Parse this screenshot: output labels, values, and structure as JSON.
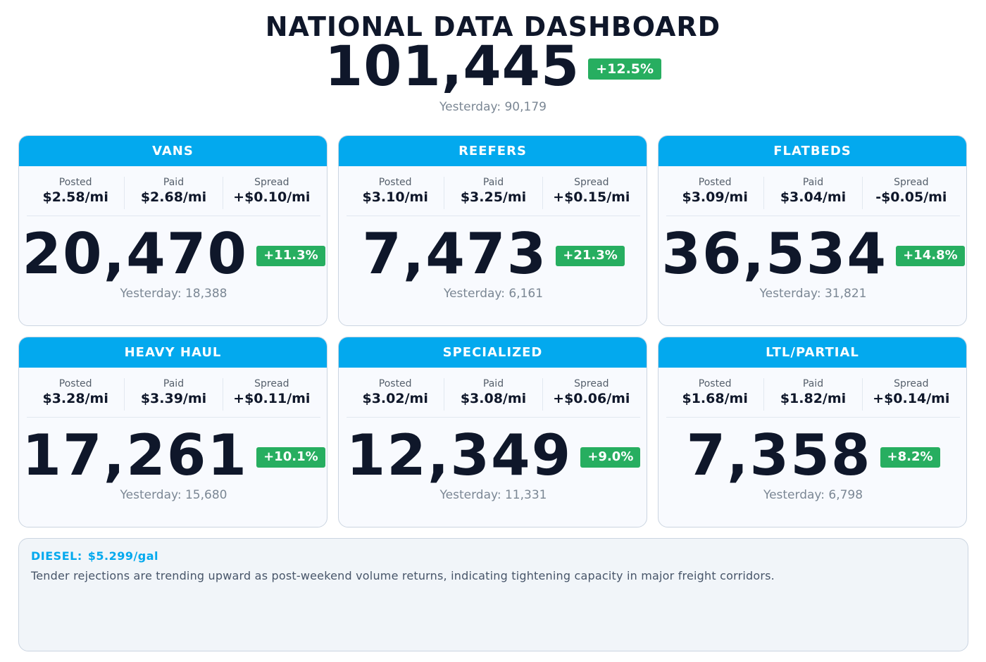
{
  "header": {
    "title": "NATIONAL DATA DASHBOARD",
    "total": "101,445",
    "change": "+12.5%",
    "yesterday": "Yesterday: 90,179"
  },
  "labels": {
    "posted": "Posted",
    "paid": "Paid",
    "spread": "Spread"
  },
  "cards": [
    {
      "title": "VANS",
      "posted": "$2.58/mi",
      "paid": "$2.68/mi",
      "spread": "+$0.10/mi",
      "count": "20,470",
      "change": "+11.3%",
      "yesterday": "Yesterday: 18,388"
    },
    {
      "title": "REEFERS",
      "posted": "$3.10/mi",
      "paid": "$3.25/mi",
      "spread": "+$0.15/mi",
      "count": "7,473",
      "change": "+21.3%",
      "yesterday": "Yesterday: 6,161"
    },
    {
      "title": "FLATBEDS",
      "posted": "$3.09/mi",
      "paid": "$3.04/mi",
      "spread": "-$0.05/mi",
      "count": "36,534",
      "change": "+14.8%",
      "yesterday": "Yesterday: 31,821"
    },
    {
      "title": "HEAVY HAUL",
      "posted": "$3.28/mi",
      "paid": "$3.39/mi",
      "spread": "+$0.11/mi",
      "count": "17,261",
      "change": "+10.1%",
      "yesterday": "Yesterday: 15,680"
    },
    {
      "title": "SPECIALIZED",
      "posted": "$3.02/mi",
      "paid": "$3.08/mi",
      "spread": "+$0.06/mi",
      "count": "12,349",
      "change": "+9.0%",
      "yesterday": "Yesterday: 11,331"
    },
    {
      "title": "LTL/PARTIAL",
      "posted": "$1.68/mi",
      "paid": "$1.82/mi",
      "spread": "+$0.14/mi",
      "count": "7,358",
      "change": "+8.2%",
      "yesterday": "Yesterday: 6,798"
    }
  ],
  "notes": {
    "diesel_label": "DIESEL:",
    "diesel_value": "$5.299/gal",
    "text": "Tender rejections are trending upward as post-weekend volume returns, indicating tightening capacity in major freight corridors."
  },
  "colors": {
    "accent": "#03a9ee",
    "positive": "#27ae60",
    "text": "#0f172a",
    "muted": "#7b8794"
  }
}
